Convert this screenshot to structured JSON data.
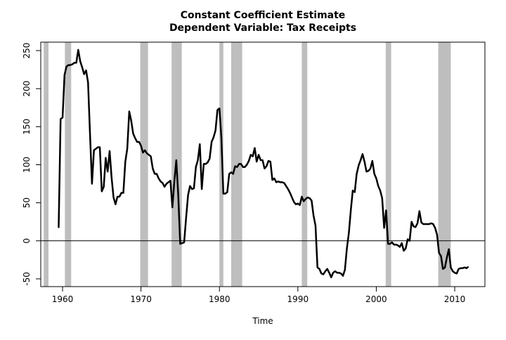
{
  "chart_data": {
    "type": "line",
    "title": "Constant Coefficient Estimate",
    "subtitle": "Dependent Variable: Tax Receipts",
    "x_label": "Time",
    "color": "#000000",
    "shade_color": "#bebebe",
    "reference_line": 0,
    "shaded_periods": [
      [
        1957.6,
        1958.2
      ],
      [
        1960.3,
        1961.1
      ],
      [
        1969.9,
        1970.9
      ],
      [
        1973.9,
        1975.2
      ],
      [
        1980.0,
        1980.5
      ],
      [
        1981.5,
        1982.9
      ],
      [
        1990.5,
        1991.2
      ],
      [
        2001.2,
        2001.9
      ],
      [
        2007.9,
        2009.5
      ]
    ],
    "x": [
      1959.5,
      1959.75,
      1960,
      1960.25,
      1960.5,
      1960.75,
      1961,
      1961.25,
      1961.5,
      1961.75,
      1962,
      1962.25,
      1962.5,
      1962.75,
      1963,
      1963.25,
      1963.5,
      1963.75,
      1964,
      1964.25,
      1964.5,
      1964.75,
      1965,
      1965.25,
      1965.5,
      1965.75,
      1966,
      1966.25,
      1966.5,
      1966.75,
      1967,
      1967.25,
      1967.5,
      1967.75,
      1968,
      1968.25,
      1968.5,
      1968.75,
      1969,
      1969.25,
      1969.5,
      1969.75,
      1970,
      1970.25,
      1970.5,
      1970.75,
      1971,
      1971.25,
      1971.5,
      1971.75,
      1972,
      1972.25,
      1972.5,
      1972.75,
      1973,
      1973.25,
      1973.5,
      1973.75,
      1974,
      1974.25,
      1974.5,
      1974.75,
      1975,
      1975.25,
      1975.5,
      1975.75,
      1976,
      1976.25,
      1976.5,
      1976.75,
      1977,
      1977.25,
      1977.5,
      1977.75,
      1978,
      1978.25,
      1978.5,
      1978.75,
      1979,
      1979.25,
      1979.5,
      1979.75,
      1980,
      1980.25,
      1980.5,
      1980.75,
      1981,
      1981.25,
      1981.5,
      1981.75,
      1982,
      1982.25,
      1982.5,
      1982.75,
      1983,
      1983.25,
      1983.5,
      1983.75,
      1984,
      1984.25,
      1984.5,
      1984.75,
      1985,
      1985.25,
      1985.5,
      1985.75,
      1986,
      1986.25,
      1986.5,
      1986.75,
      1987,
      1987.25,
      1987.5,
      1987.75,
      1988,
      1988.25,
      1988.5,
      1988.75,
      1989,
      1989.25,
      1989.5,
      1989.75,
      1990,
      1990.25,
      1990.5,
      1990.75,
      1991,
      1991.25,
      1991.5,
      1991.75,
      1992,
      1992.25,
      1992.5,
      1992.75,
      1993,
      1993.25,
      1993.5,
      1993.75,
      1994,
      1994.25,
      1994.5,
      1994.75,
      1995,
      1995.25,
      1995.5,
      1995.75,
      1996,
      1996.25,
      1996.5,
      1996.75,
      1997,
      1997.25,
      1997.5,
      1997.75,
      1998,
      1998.25,
      1998.5,
      1998.75,
      1999,
      1999.25,
      1999.5,
      1999.75,
      2000,
      2000.25,
      2000.5,
      2000.75,
      2001,
      2001.25,
      2001.5,
      2001.75,
      2002,
      2002.25,
      2002.5,
      2002.75,
      2003,
      2003.25,
      2003.5,
      2003.75,
      2004,
      2004.25,
      2004.5,
      2004.75,
      2005,
      2005.25,
      2005.5,
      2005.75,
      2006,
      2006.25,
      2006.5,
      2006.75,
      2007,
      2007.25,
      2007.5,
      2007.75,
      2008,
      2008.25,
      2008.5,
      2008.75,
      2009,
      2009.25,
      2009.5,
      2009.75,
      2010,
      2010.25,
      2010.5,
      2010.75,
      2011,
      2011.25,
      2011.5,
      2011.75
    ],
    "values": [
      17,
      160,
      162,
      218,
      229,
      231,
      231,
      232,
      234,
      234,
      251,
      236,
      228,
      219,
      224,
      208,
      140,
      75,
      119,
      121,
      123,
      123,
      65,
      71,
      109,
      91,
      118,
      83,
      57,
      48,
      58,
      58,
      63,
      63,
      104,
      121,
      170,
      158,
      141,
      135,
      130,
      130,
      125,
      116,
      119,
      115,
      113,
      111,
      95,
      88,
      88,
      82,
      78,
      76,
      71,
      75,
      77,
      79,
      44,
      78,
      106,
      60,
      -4,
      -3,
      -2,
      30,
      60,
      72,
      68,
      69,
      97,
      106,
      127,
      68,
      101,
      101,
      103,
      108,
      130,
      136,
      145,
      172,
      174,
      135,
      62,
      62,
      64,
      88,
      90,
      88,
      98,
      97,
      101,
      101,
      97,
      97,
      100,
      105,
      113,
      111,
      122,
      104,
      113,
      106,
      106,
      95,
      98,
      105,
      104,
      80,
      82,
      77,
      78,
      77,
      77,
      76,
      72,
      68,
      63,
      57,
      51,
      48,
      49,
      47,
      58,
      52,
      55,
      57,
      56,
      53,
      33,
      20,
      -35,
      -37,
      -43,
      -44,
      -40,
      -37,
      -42,
      -48,
      -42,
      -40,
      -42,
      -42,
      -43,
      -46,
      -38,
      -10,
      10,
      40,
      66,
      64,
      88,
      99,
      106,
      114,
      104,
      91,
      92,
      95,
      105,
      88,
      82,
      72,
      66,
      56,
      17,
      40,
      -4,
      -4,
      -2,
      -5,
      -5,
      -6,
      -8,
      -3,
      -13,
      -10,
      2,
      0,
      25,
      19,
      18,
      23,
      39,
      24,
      22,
      22,
      22,
      22,
      23,
      22,
      17,
      8,
      -16,
      -20,
      -37,
      -35,
      -22,
      -11,
      -35,
      -40,
      -42,
      -43,
      -37,
      -36,
      -36,
      -35,
      -36,
      -34
    ],
    "xlim": [
      1957.22,
      2013.85
    ],
    "ylim": [
      -60.2,
      261.1
    ],
    "xticks": [
      1960,
      1970,
      1980,
      1990,
      2000,
      2010
    ],
    "yticks": [
      -50,
      0,
      50,
      100,
      150,
      200,
      250
    ]
  }
}
